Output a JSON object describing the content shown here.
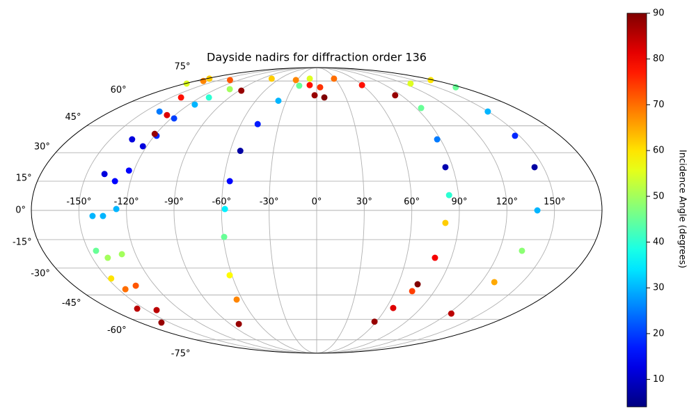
{
  "chart_data": {
    "type": "scatter",
    "projection": "mollweide",
    "title": "Dayside nadirs for diffraction order 136",
    "xlim": [
      -180,
      180
    ],
    "ylim": [
      -90,
      90
    ],
    "grid": true,
    "xticks": [
      {
        "value": -150,
        "label": "-150°"
      },
      {
        "value": -120,
        "label": "-120°"
      },
      {
        "value": -90,
        "label": "-90°"
      },
      {
        "value": -60,
        "label": "-60°"
      },
      {
        "value": -30,
        "label": "-30°"
      },
      {
        "value": 0,
        "label": "0°"
      },
      {
        "value": 30,
        "label": "30°"
      },
      {
        "value": 60,
        "label": "60°"
      },
      {
        "value": 90,
        "label": "90°"
      },
      {
        "value": 120,
        "label": "120°"
      },
      {
        "value": 150,
        "label": "150°"
      }
    ],
    "yticks": [
      {
        "value": -75,
        "label": "-75°"
      },
      {
        "value": -60,
        "label": "-60°"
      },
      {
        "value": -45,
        "label": "-45°"
      },
      {
        "value": -30,
        "label": "-30°"
      },
      {
        "value": -15,
        "label": "-15°"
      },
      {
        "value": 0,
        "label": "0°"
      },
      {
        "value": 15,
        "label": "15°"
      },
      {
        "value": 30,
        "label": "30°"
      },
      {
        "value": 45,
        "label": "45°"
      },
      {
        "value": 60,
        "label": "60°"
      },
      {
        "value": 75,
        "label": "75°"
      }
    ],
    "colormap": "jet",
    "clim": [
      4,
      90
    ],
    "colorbar": {
      "label": "Incidence Angle (degrees)",
      "ticks": [
        10,
        20,
        30,
        40,
        50,
        60,
        70,
        80,
        90
      ]
    },
    "series": [
      {
        "x": [
          -178.4,
          -137.4,
          -134.2,
          -138.4,
          -141.5,
          -145.1,
          -147.5,
          -156
        ],
        "values": [
          72.9,
          53.6,
          37.3,
          18.7,
          -2.85,
          -20.8,
          -35.7,
          -53.2
        ],
        "c": [
          55,
          25,
          12,
          12,
          30,
          45,
          60,
          85
        ]
      },
      {
        "x": [
          -111,
          -117.6,
          -122.7,
          -130,
          -134.9,
          -139.7,
          -144.7,
          -158.2
        ],
        "values": [
          62.7,
          49.4,
          33.5,
          15,
          -2.85,
          -24.5,
          -41.7,
          -62.2
        ],
        "c": [
          40,
          20,
          12,
          15,
          30,
          50,
          70,
          88
        ]
      },
      {
        "x": [
          -103.7,
          -114.5,
          -118.4,
          -123.3,
          -126.4,
          -129.1,
          -134.3,
          -141
        ],
        "values": [
          68.6,
          58,
          39.3,
          20.5,
          0.7,
          -22.6,
          -39.7,
          -54.1
        ],
        "c": [
          50,
          30,
          18,
          15,
          30,
          50,
          72,
          85
        ]
      },
      {
        "x": [
          -169,
          -139.7,
          -126.8,
          -121
        ],
        "values": [
          75,
          62.7,
          51.4,
          40.4
        ],
        "c": [
          68,
          78,
          82,
          88
        ]
      },
      {
        "x": [
          -175.3,
          -133.8,
          -87.2
        ],
        "values": [
          77,
          75.8,
          67.5
        ],
        "c": [
          62,
          72,
          88
        ]
      },
      {
        "x": [
          -73.5,
          -32.1,
          -9.2,
          -2.2
        ],
        "values": [
          77,
          75.8,
          71.7,
          64.2
        ],
        "c": [
          62,
          68,
          78,
          88
        ]
      },
      {
        "x": [
          -81.1,
          -64.6,
          -61.6,
          -59.4,
          -57.9,
          -56,
          -53,
          -46.7,
          -37.7,
          -22.6,
          -11.3,
          4.3,
          7.9
        ],
        "values": [
          -63.2,
          -47.7,
          -33.9,
          -13.6,
          0.7,
          15,
          31,
          46,
          60.5,
          71.2,
          77,
          70,
          62.7
        ],
        "c": [
          88,
          68,
          58,
          45,
          35,
          15,
          7,
          17,
          30,
          45,
          55,
          75,
          90
        ]
      },
      {
        "x": [
          28.3,
          59.6,
          83.6
        ],
        "values": [
          77,
          71.7,
          64.2
        ],
        "c": [
          70,
          78,
          88
        ]
      },
      {
        "x": [
          176,
          128.8,
          94.5,
          87.6,
          85.2,
          84,
          81.5,
          79.1,
          74.4
        ],
        "values": [
          75.8,
          72.9,
          55.8,
          37.3,
          22.3,
          7.8,
          -6.4,
          -24.5,
          -38.9
        ],
        "c": [
          60,
          55,
          45,
          25,
          8,
          40,
          62,
          80,
          90
        ]
      },
      {
        "x": [
          58.2,
          66.1,
          73
        ],
        "values": [
          -61.6,
          -52.8,
          -42.8
        ],
        "c": [
          88,
          82,
          74
        ]
      },
      {
        "x": [
          173,
          149.6,
          146.7,
          144.2,
          139.2,
          135,
          129.6,
          122.8
        ],
        "values": [
          70,
          53.6,
          39.3,
          22.3,
          0,
          -20.8,
          -37.7,
          -56.3
        ],
        "c": [
          45,
          30,
          18,
          7,
          30,
          48,
          65,
          85
        ]
      }
    ]
  }
}
